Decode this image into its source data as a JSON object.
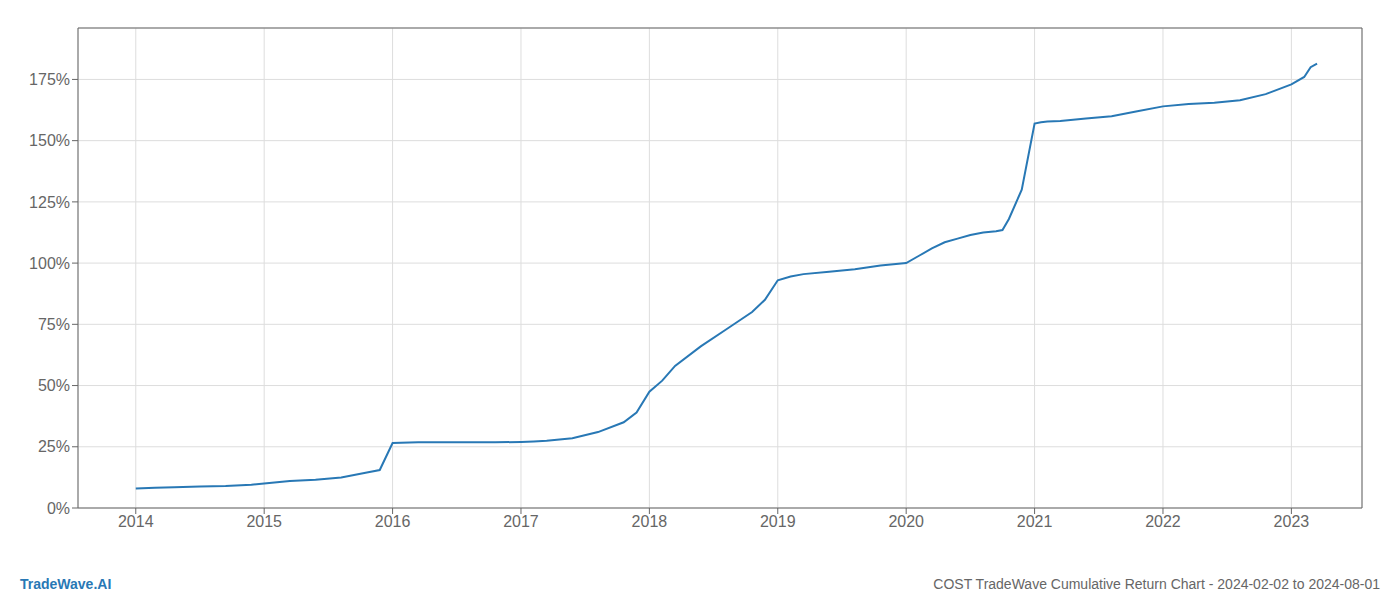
{
  "chart_data": {
    "type": "line",
    "title": "COST TradeWave Cumulative Return Chart - 2024-02-02 to 2024-08-01",
    "annotations": [
      "TradeWave.AI"
    ],
    "color": "#2878b5",
    "grid": true,
    "x": [
      2014.0,
      2014.15,
      2014.3,
      2014.5,
      2014.7,
      2014.9,
      2015.0,
      2015.1,
      2015.2,
      2015.4,
      2015.6,
      2015.8,
      2015.9,
      2016.0,
      2016.2,
      2016.4,
      2016.6,
      2016.8,
      2017.0,
      2017.1,
      2017.2,
      2017.4,
      2017.6,
      2017.8,
      2017.9,
      2018.0,
      2018.1,
      2018.2,
      2018.4,
      2018.6,
      2018.8,
      2018.9,
      2019.0,
      2019.1,
      2019.2,
      2019.4,
      2019.6,
      2019.8,
      2020.0,
      2020.1,
      2020.2,
      2020.3,
      2020.4,
      2020.5,
      2020.6,
      2020.7,
      2020.75,
      2020.8,
      2020.9,
      2021.0,
      2021.05,
      2021.1,
      2021.2,
      2021.4,
      2021.6,
      2021.8,
      2022.0,
      2022.2,
      2022.4,
      2022.5,
      2022.6,
      2022.8,
      2023.0,
      2023.1,
      2023.15,
      2023.2
    ],
    "values": [
      0.08,
      0.083,
      0.085,
      0.088,
      0.09,
      0.095,
      0.1,
      0.105,
      0.11,
      0.115,
      0.125,
      0.145,
      0.155,
      0.265,
      0.268,
      0.268,
      0.268,
      0.268,
      0.27,
      0.272,
      0.275,
      0.285,
      0.31,
      0.35,
      0.39,
      0.475,
      0.52,
      0.58,
      0.66,
      0.73,
      0.8,
      0.85,
      0.93,
      0.945,
      0.955,
      0.965,
      0.975,
      0.99,
      1.0,
      1.03,
      1.06,
      1.085,
      1.1,
      1.115,
      1.125,
      1.13,
      1.135,
      1.18,
      1.3,
      1.57,
      1.575,
      1.578,
      1.58,
      1.59,
      1.6,
      1.62,
      1.64,
      1.65,
      1.655,
      1.66,
      1.665,
      1.69,
      1.73,
      1.76,
      1.8,
      1.815
    ],
    "xlim": [
      2013.55,
      2023.55
    ],
    "xticks": [
      2014,
      2015,
      2016,
      2017,
      2018,
      2019,
      2020,
      2021,
      2022,
      2023
    ],
    "ylim": [
      0.0,
      1.96
    ],
    "yticks": [
      {
        "value": 0.0,
        "label": "0%"
      },
      {
        "value": 0.25,
        "label": "25%"
      },
      {
        "value": 0.5,
        "label": "50%"
      },
      {
        "value": 0.75,
        "label": "75%"
      },
      {
        "value": 1.0,
        "label": "100%"
      },
      {
        "value": 1.25,
        "label": "125%"
      },
      {
        "value": 1.5,
        "label": "150%"
      },
      {
        "value": 1.75,
        "label": "175%"
      }
    ]
  }
}
